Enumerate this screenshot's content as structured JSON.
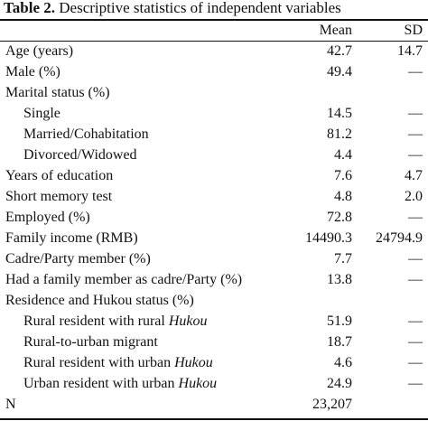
{
  "caption": {
    "label": "Table 2.",
    "text": " Descriptive  statistics  of independent  variables"
  },
  "header": {
    "mean": "Mean",
    "sd": "SD"
  },
  "rows": [
    {
      "label": "Age (years)",
      "mean": "42.7",
      "sd": "14.7"
    },
    {
      "label": "Male (%)",
      "mean": "49.4",
      "sd": "—"
    },
    {
      "label": "Marital status (%)",
      "mean": "",
      "sd": ""
    },
    {
      "label": "Single",
      "mean": "14.5",
      "sd": "—"
    },
    {
      "label": "Married/Cohabitation",
      "mean": "81.2",
      "sd": "—"
    },
    {
      "label": "Divorced/Widowed",
      "mean": "4.4",
      "sd": "—"
    },
    {
      "label": "Years of education",
      "mean": "7.6",
      "sd": "4.7"
    },
    {
      "label": "Short memory test",
      "mean": "4.8",
      "sd": "2.0"
    },
    {
      "label": "Employed  (%)",
      "mean": "72.8",
      "sd": "—"
    },
    {
      "label": "Family income (RMB)",
      "mean": "14490.3",
      "sd": "24794.9"
    },
    {
      "label": "Cadre/Party member (%)",
      "mean": "7.7",
      "sd": "—"
    },
    {
      "label": "Had a family  member as cadre/Party (%)",
      "mean": "13.8",
      "sd": "—"
    },
    {
      "label": "Residence  and Hukou status (%)",
      "mean": "",
      "sd": ""
    },
    {
      "label_prefix": "Rural resident with rural ",
      "label_em": "Hukou",
      "mean": "51.9",
      "sd": "—"
    },
    {
      "label": "Rural-to-urban  migrant",
      "mean": "18.7",
      "sd": "—"
    },
    {
      "label_prefix": "Rural resident with urban ",
      "label_em": "Hukou",
      "mean": "4.6",
      "sd": "—"
    },
    {
      "label_prefix": "Urban resident with urban ",
      "label_em": "Hukou",
      "mean": "24.9",
      "sd": "—"
    },
    {
      "label": "N",
      "mean": "23,207",
      "sd": ""
    }
  ]
}
